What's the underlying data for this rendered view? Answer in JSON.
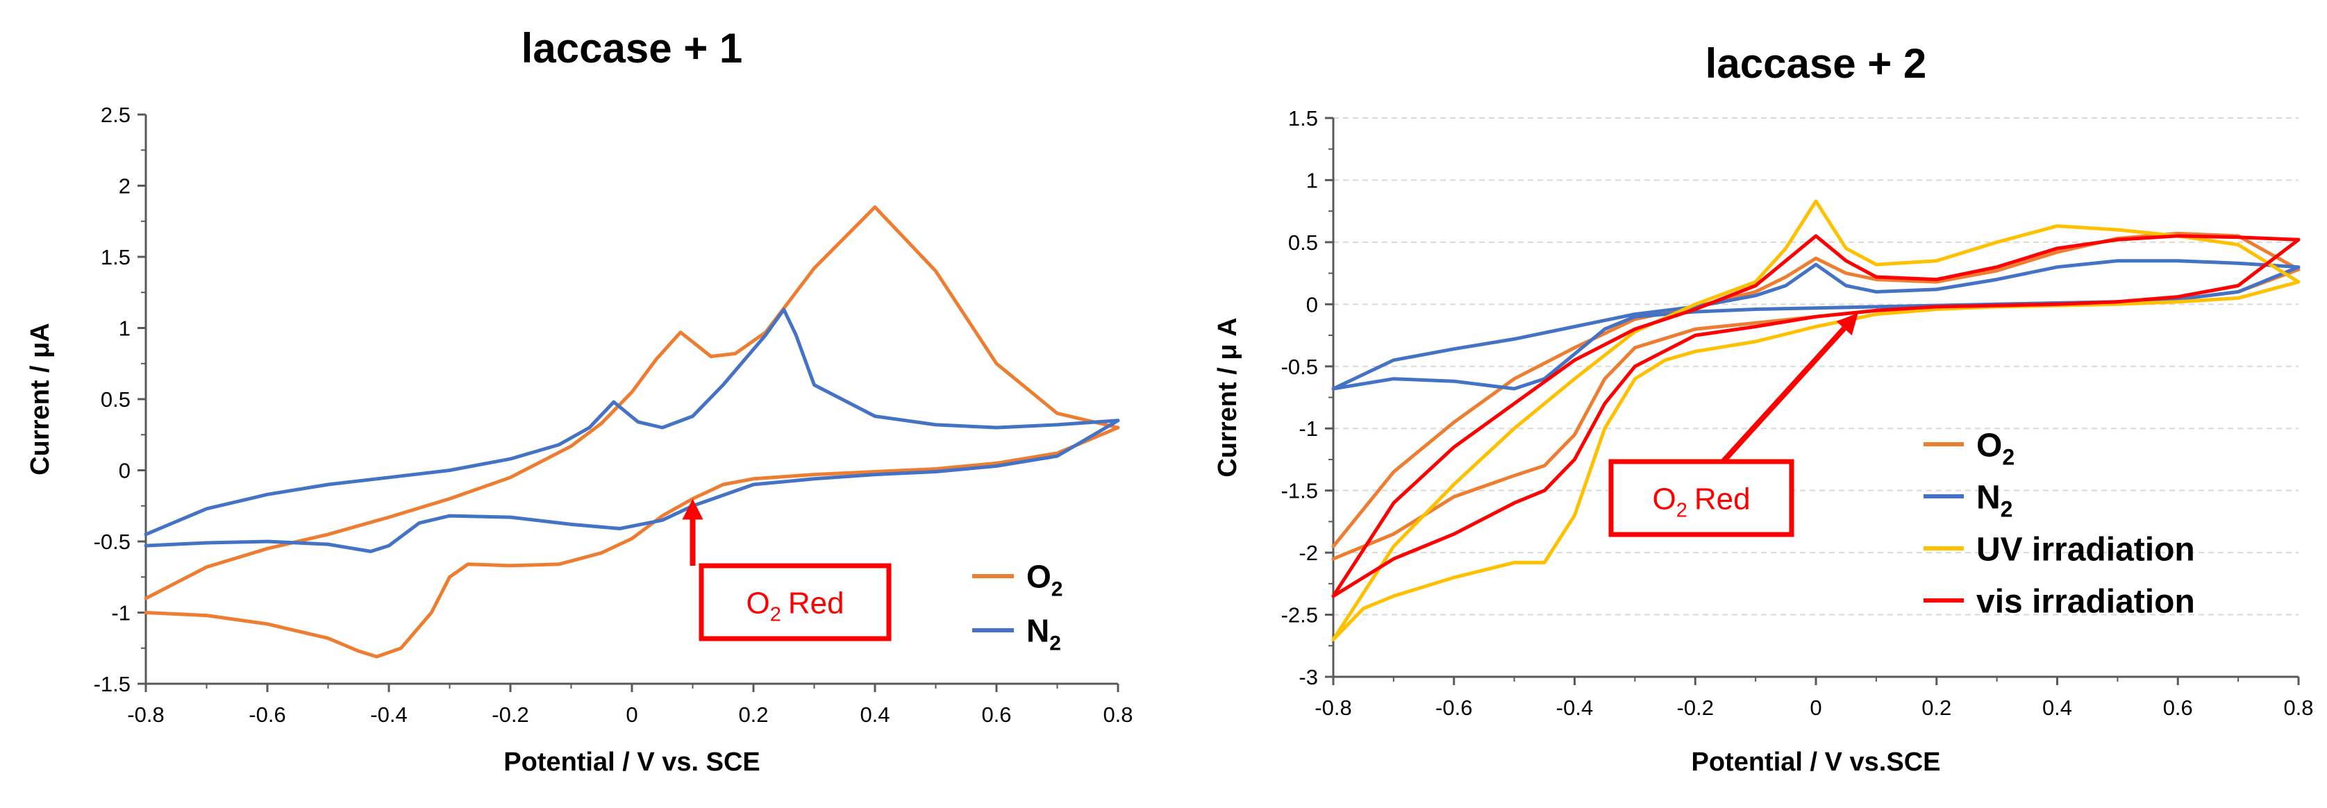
{
  "colors": {
    "o2": "#ED7D31",
    "n2": "#4472C4",
    "uv": "#FFC000",
    "vis": "#FF0000",
    "annotation": "#FF0000",
    "axis": "#595959",
    "grid": "#D9D9D9"
  },
  "chart_data": [
    {
      "type": "line",
      "title": "laccase + 1",
      "xlabel": "Potential / V vs. SCE",
      "ylabel": "Current / μA",
      "xlim": [
        -0.8,
        0.8
      ],
      "ylim": [
        -1.5,
        2.5
      ],
      "xticks": [
        "-0.8",
        "-0.6",
        "-0.4",
        "-0.2",
        "0",
        "0.2",
        "0.4",
        "0.6",
        "0.8"
      ],
      "yticks": [
        "2.5",
        "2",
        "1.5",
        "1",
        "0.5",
        "0",
        "-0.5",
        "-1",
        "-1.5"
      ],
      "grid": false,
      "legend_position": "bottom-right",
      "annotation": {
        "text": "Red",
        "prefix": "O",
        "subscript": "2",
        "arrow_to": [
          0.1,
          -0.2
        ]
      },
      "series": [
        {
          "name": "O2",
          "label": "O",
          "subscript": "2",
          "color_key": "o2",
          "x": [
            -0.8,
            -0.7,
            -0.6,
            -0.5,
            -0.45,
            -0.42,
            -0.38,
            -0.33,
            -0.3,
            -0.27,
            -0.2,
            -0.12,
            -0.05,
            0.0,
            0.05,
            0.1,
            0.15,
            0.2,
            0.3,
            0.4,
            0.45,
            0.5,
            0.6,
            0.7,
            0.8,
            0.7,
            0.6,
            0.5,
            0.4,
            0.3,
            0.22,
            0.17,
            0.13,
            0.08,
            0.04,
            0.0,
            -0.05,
            -0.1,
            -0.2,
            -0.3,
            -0.4,
            -0.5,
            -0.6,
            -0.7,
            -0.8
          ],
          "y": [
            -1.0,
            -1.02,
            -1.08,
            -1.18,
            -1.27,
            -1.31,
            -1.25,
            -1.0,
            -0.75,
            -0.66,
            -0.67,
            -0.66,
            -0.58,
            -0.48,
            -0.32,
            -0.2,
            -0.1,
            -0.06,
            -0.03,
            -0.01,
            0.0,
            0.01,
            0.05,
            0.12,
            0.3,
            0.4,
            0.75,
            1.4,
            1.85,
            1.42,
            0.97,
            0.82,
            0.8,
            0.97,
            0.78,
            0.55,
            0.33,
            0.17,
            -0.05,
            -0.2,
            -0.33,
            -0.45,
            -0.55,
            -0.68,
            -0.9
          ]
        },
        {
          "name": "N2",
          "label": "N",
          "subscript": "2",
          "color_key": "n2",
          "x": [
            -0.8,
            -0.7,
            -0.6,
            -0.5,
            -0.43,
            -0.4,
            -0.35,
            -0.3,
            -0.2,
            -0.1,
            -0.02,
            0.05,
            0.1,
            0.2,
            0.3,
            0.4,
            0.5,
            0.6,
            0.7,
            0.8,
            0.7,
            0.6,
            0.5,
            0.4,
            0.3,
            0.27,
            0.25,
            0.22,
            0.15,
            0.1,
            0.05,
            0.01,
            -0.03,
            -0.07,
            -0.12,
            -0.2,
            -0.3,
            -0.4,
            -0.5,
            -0.6,
            -0.7,
            -0.8
          ],
          "y": [
            -0.53,
            -0.51,
            -0.5,
            -0.52,
            -0.57,
            -0.53,
            -0.37,
            -0.32,
            -0.33,
            -0.38,
            -0.41,
            -0.35,
            -0.25,
            -0.1,
            -0.06,
            -0.03,
            -0.01,
            0.03,
            0.1,
            0.35,
            0.32,
            0.3,
            0.32,
            0.38,
            0.6,
            0.95,
            1.13,
            0.95,
            0.6,
            0.38,
            0.3,
            0.34,
            0.48,
            0.3,
            0.18,
            0.08,
            0.0,
            -0.05,
            -0.1,
            -0.17,
            -0.27,
            -0.45
          ]
        }
      ]
    },
    {
      "type": "line",
      "title": "laccase + 2",
      "xlabel": "Potential / V vs.SCE",
      "ylabel": "Current / μ A",
      "xlim": [
        -0.8,
        0.8
      ],
      "ylim": [
        -3,
        1.5
      ],
      "xticks": [
        "-0.8",
        "-0.6",
        "-0.4",
        "-0.2",
        "0",
        "0.2",
        "0.4",
        "0.6",
        "0.8"
      ],
      "yticks": [
        "1.5",
        "1",
        "0.5",
        "0",
        "-0.5",
        "-1",
        "-1.5",
        "-2",
        "-2.5",
        "-3"
      ],
      "grid": true,
      "legend_position": "bottom-right",
      "annotation": {
        "text": "Red",
        "prefix": "O",
        "subscript": "2",
        "arrow_to": [
          0.07,
          -0.07
        ]
      },
      "series": [
        {
          "name": "O2",
          "label": "O",
          "subscript": "2",
          "color_key": "o2",
          "x": [
            -0.8,
            -0.7,
            -0.6,
            -0.5,
            -0.45,
            -0.4,
            -0.35,
            -0.3,
            -0.2,
            -0.1,
            0.0,
            0.1,
            0.2,
            0.3,
            0.4,
            0.5,
            0.6,
            0.7,
            0.8,
            0.7,
            0.6,
            0.5,
            0.4,
            0.3,
            0.2,
            0.1,
            0.05,
            0.0,
            -0.05,
            -0.1,
            -0.2,
            -0.3,
            -0.4,
            -0.5,
            -0.6,
            -0.7,
            -0.8
          ],
          "y": [
            -2.05,
            -1.85,
            -1.55,
            -1.38,
            -1.3,
            -1.05,
            -0.6,
            -0.35,
            -0.2,
            -0.15,
            -0.1,
            -0.05,
            -0.02,
            0.0,
            0.01,
            0.02,
            0.04,
            0.1,
            0.28,
            0.55,
            0.57,
            0.53,
            0.42,
            0.27,
            0.18,
            0.2,
            0.25,
            0.37,
            0.22,
            0.1,
            -0.02,
            -0.12,
            -0.35,
            -0.6,
            -0.95,
            -1.35,
            -1.95
          ]
        },
        {
          "name": "N2",
          "label": "N",
          "subscript": "2",
          "color_key": "n2",
          "x": [
            -0.8,
            -0.7,
            -0.6,
            -0.5,
            -0.45,
            -0.4,
            -0.35,
            -0.3,
            -0.2,
            -0.1,
            0.0,
            0.1,
            0.2,
            0.3,
            0.4,
            0.5,
            0.6,
            0.7,
            0.8,
            0.7,
            0.6,
            0.5,
            0.4,
            0.3,
            0.2,
            0.1,
            0.05,
            0.0,
            -0.05,
            -0.1,
            -0.2,
            -0.3,
            -0.4,
            -0.5,
            -0.6,
            -0.7,
            -0.8
          ],
          "y": [
            -0.68,
            -0.6,
            -0.62,
            -0.68,
            -0.6,
            -0.4,
            -0.2,
            -0.1,
            -0.06,
            -0.04,
            -0.03,
            -0.02,
            -0.01,
            0.0,
            0.01,
            0.02,
            0.04,
            0.1,
            0.3,
            0.33,
            0.35,
            0.35,
            0.3,
            0.2,
            0.12,
            0.1,
            0.15,
            0.32,
            0.15,
            0.07,
            -0.02,
            -0.08,
            -0.18,
            -0.28,
            -0.36,
            -0.45,
            -0.68
          ]
        },
        {
          "name": "UV irradiation",
          "label": "UV irradiation",
          "color_key": "uv",
          "x": [
            -0.8,
            -0.75,
            -0.7,
            -0.6,
            -0.5,
            -0.45,
            -0.4,
            -0.35,
            -0.3,
            -0.25,
            -0.2,
            -0.1,
            0.0,
            0.1,
            0.2,
            0.3,
            0.4,
            0.5,
            0.6,
            0.7,
            0.8,
            0.7,
            0.6,
            0.5,
            0.4,
            0.3,
            0.2,
            0.1,
            0.05,
            0.0,
            -0.05,
            -0.1,
            -0.2,
            -0.3,
            -0.4,
            -0.5,
            -0.6,
            -0.7,
            -0.8
          ],
          "y": [
            -2.7,
            -2.45,
            -2.35,
            -2.2,
            -2.08,
            -2.08,
            -1.7,
            -1.0,
            -0.6,
            -0.45,
            -0.38,
            -0.3,
            -0.18,
            -0.08,
            -0.04,
            -0.02,
            -0.01,
            0.0,
            0.02,
            0.05,
            0.18,
            0.48,
            0.55,
            0.6,
            0.63,
            0.5,
            0.35,
            0.32,
            0.45,
            0.83,
            0.45,
            0.18,
            0.0,
            -0.22,
            -0.6,
            -1.0,
            -1.45,
            -1.95,
            -2.7
          ]
        },
        {
          "name": "vis irradiation",
          "label": "vis irradiation",
          "color_key": "vis",
          "x": [
            -0.8,
            -0.7,
            -0.6,
            -0.5,
            -0.45,
            -0.4,
            -0.35,
            -0.3,
            -0.2,
            -0.1,
            0.0,
            0.1,
            0.2,
            0.3,
            0.4,
            0.5,
            0.6,
            0.7,
            0.8,
            0.7,
            0.6,
            0.5,
            0.4,
            0.3,
            0.2,
            0.1,
            0.05,
            0.0,
            -0.05,
            -0.1,
            -0.2,
            -0.3,
            -0.4,
            -0.5,
            -0.6,
            -0.7,
            -0.8
          ],
          "y": [
            -2.35,
            -2.05,
            -1.85,
            -1.6,
            -1.5,
            -1.25,
            -0.8,
            -0.5,
            -0.25,
            -0.18,
            -0.1,
            -0.05,
            -0.02,
            -0.01,
            0.0,
            0.02,
            0.06,
            0.15,
            0.52,
            0.54,
            0.55,
            0.52,
            0.45,
            0.3,
            0.2,
            0.22,
            0.35,
            0.55,
            0.35,
            0.15,
            -0.04,
            -0.2,
            -0.45,
            -0.8,
            -1.15,
            -1.6,
            -2.35
          ]
        }
      ]
    }
  ]
}
